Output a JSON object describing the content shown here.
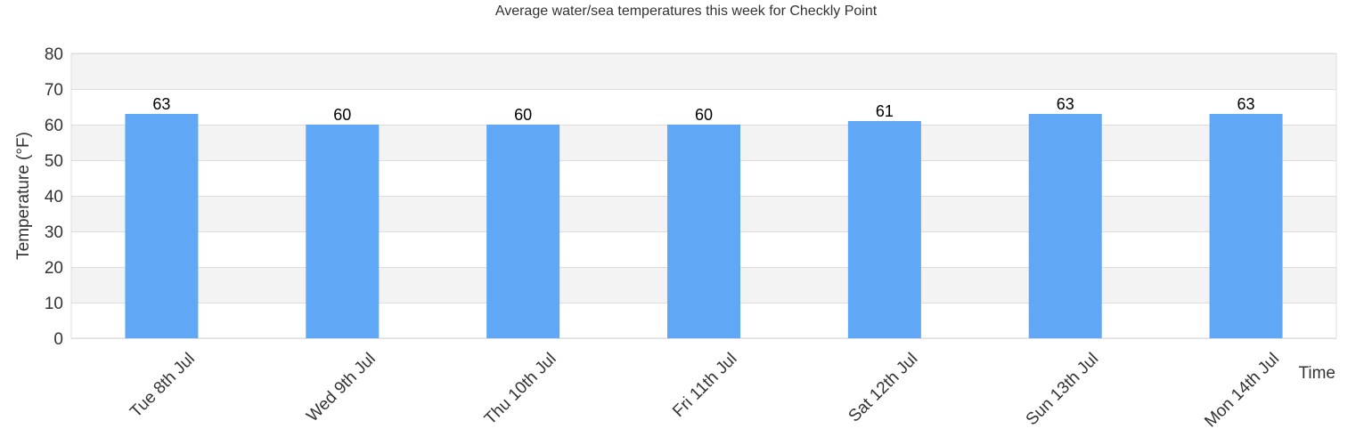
{
  "chart_data": {
    "type": "bar",
    "title": "Average water/sea temperatures this week for Checkly Point",
    "xlabel": "Time",
    "ylabel": "Temperature (°F)",
    "categories": [
      "Tue 8th Jul",
      "Wed 9th Jul",
      "Thu 10th Jul",
      "Fri 11th Jul",
      "Sat 12th Jul",
      "Sun 13th Jul",
      "Mon 14th Jul"
    ],
    "values": [
      63,
      60,
      60,
      60,
      61,
      63,
      63
    ],
    "ylim": [
      0,
      80
    ],
    "yticks": [
      0,
      10,
      20,
      30,
      40,
      50,
      60,
      70,
      80
    ],
    "grid": true,
    "show_data_labels": true,
    "colors": {
      "bar": "#60a8f5",
      "band": "#f3f3f3",
      "grid": "#dddddd"
    }
  }
}
